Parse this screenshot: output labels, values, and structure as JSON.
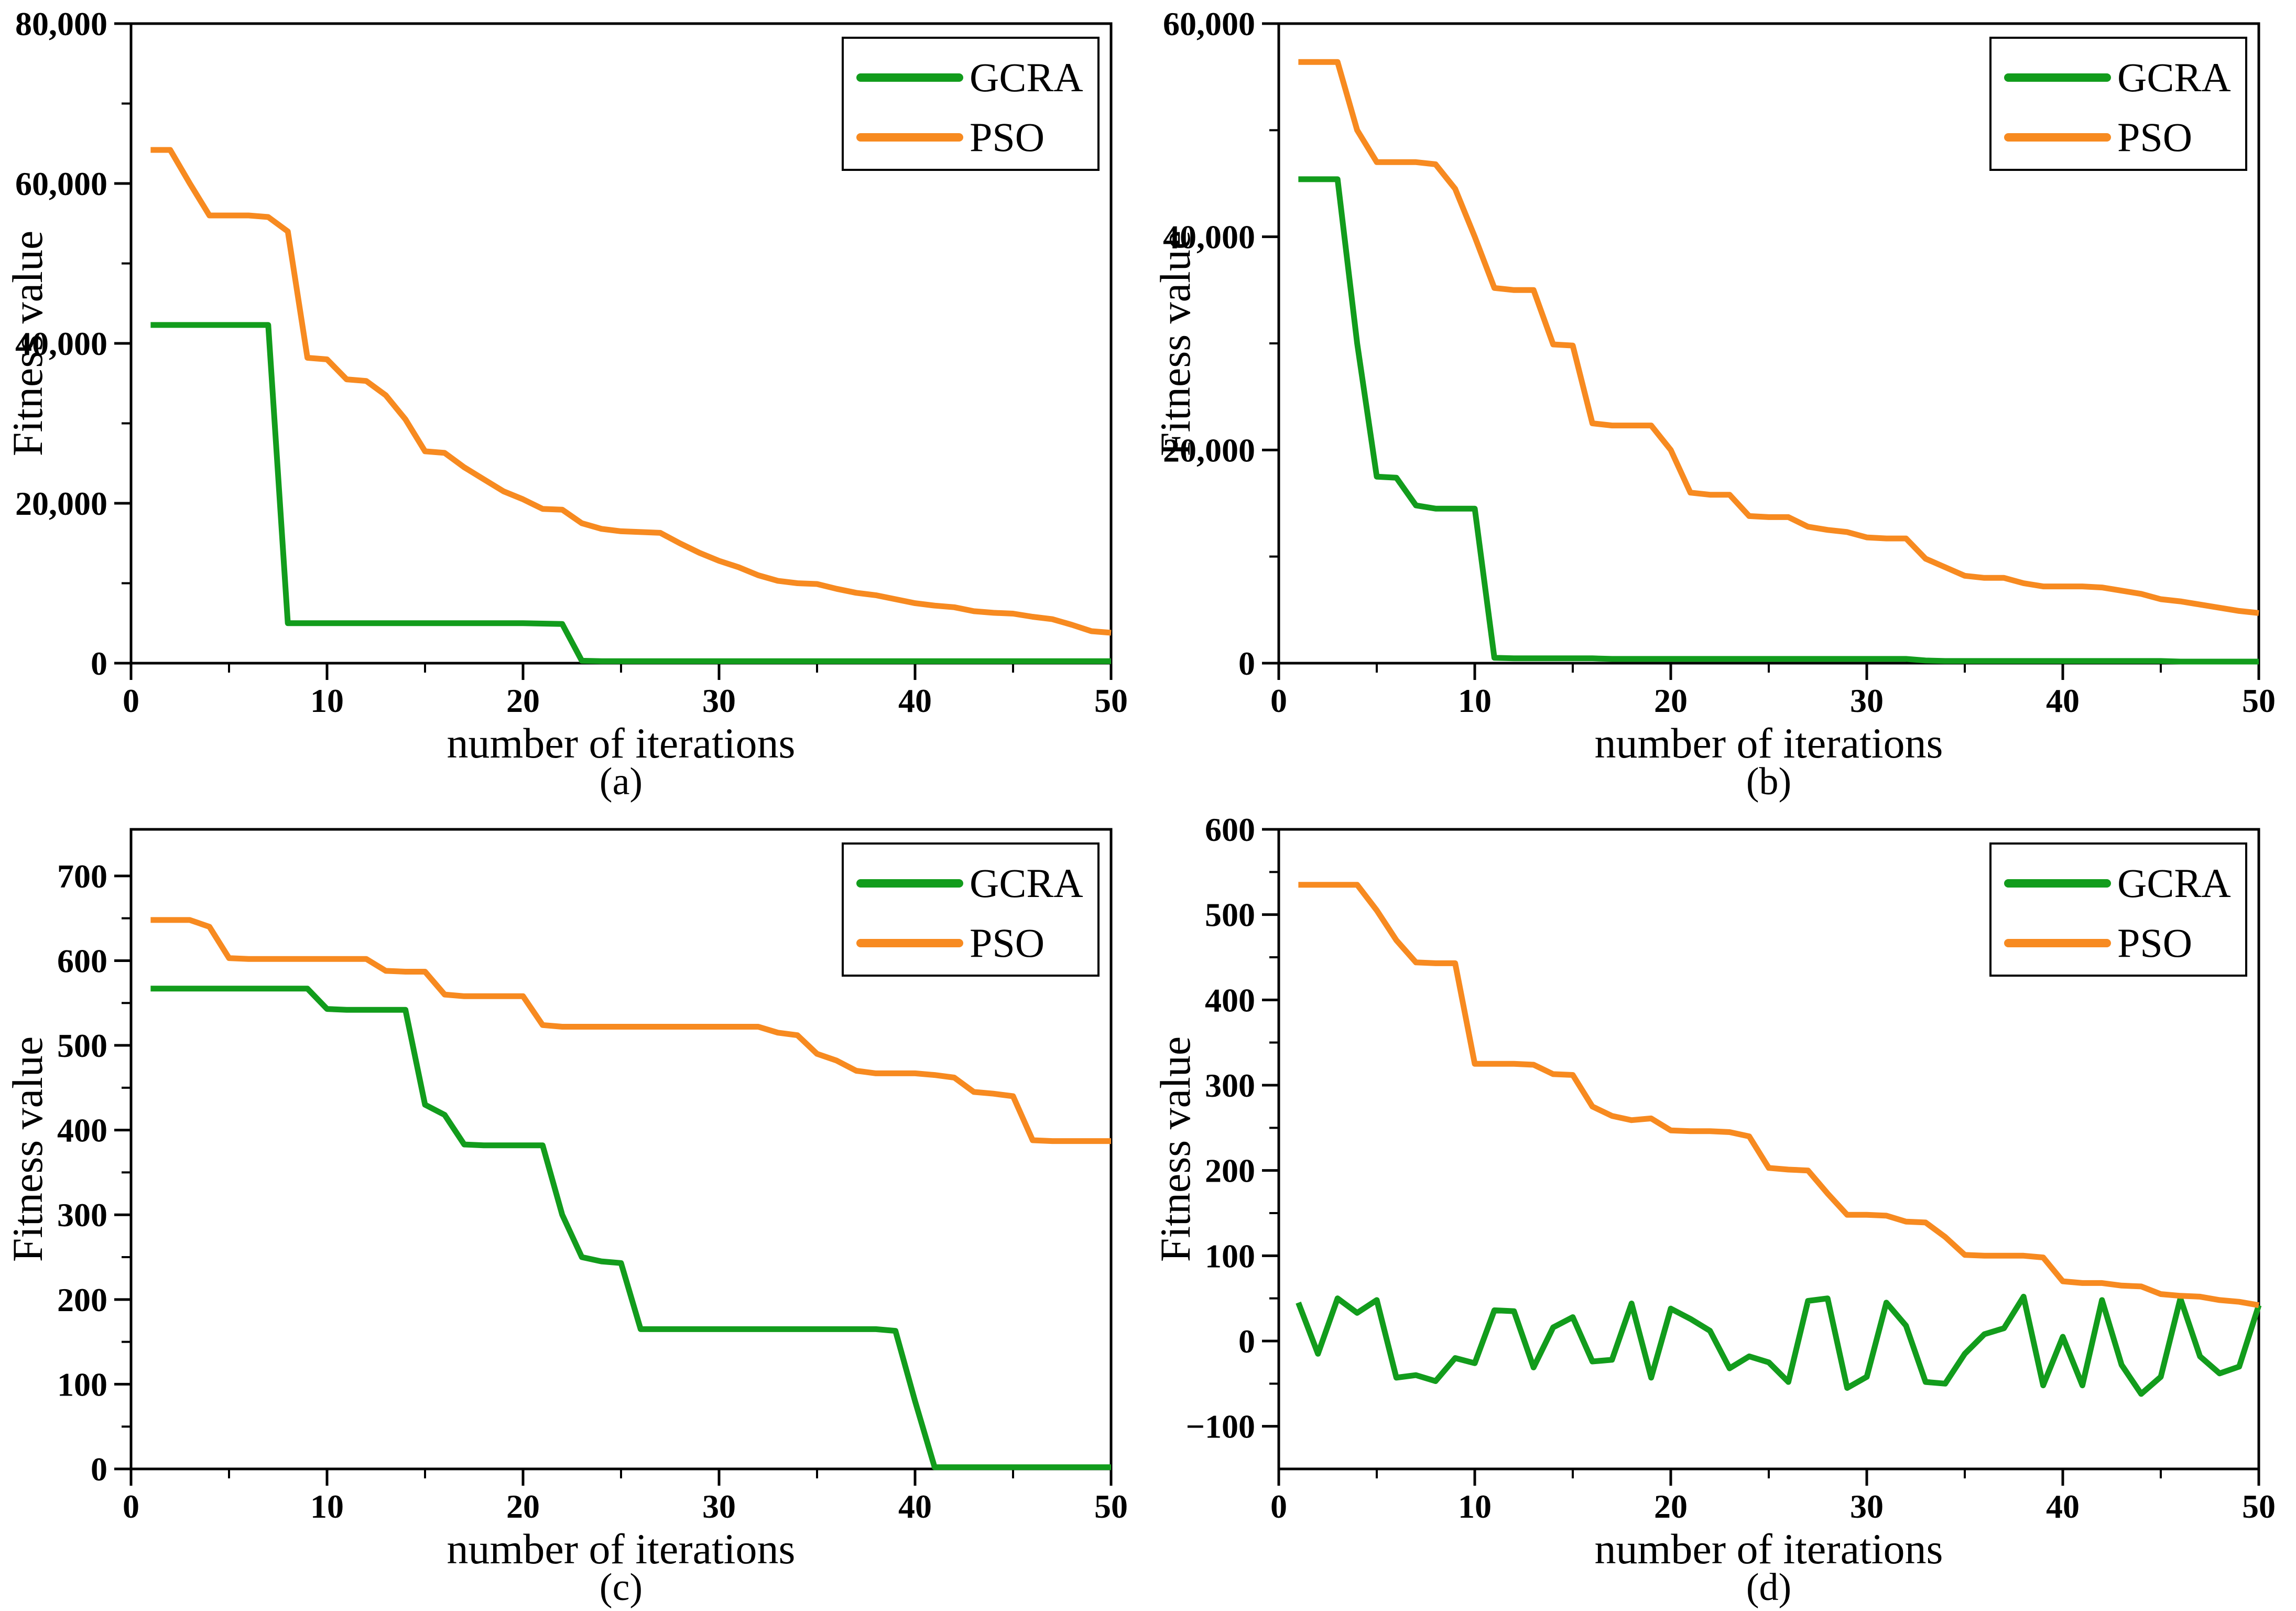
{
  "page": {
    "background": "#ffffff"
  },
  "colors": {
    "gcra": "#129C1C",
    "pso": "#F78A20",
    "axis": "#000000"
  },
  "legend": {
    "items": [
      {
        "label": "GCRA"
      },
      {
        "label": "PSO"
      }
    ],
    "position": "top-right"
  },
  "chart_data": [
    {
      "id": "a",
      "type": "line",
      "caption": "(a)",
      "xlabel": "number of iterations",
      "ylabel": "Fitness value",
      "grid": false,
      "legend_position": "top-right",
      "xlim": [
        0,
        50
      ],
      "ylim": [
        0,
        80000
      ],
      "x_start": 1,
      "x_step": 1,
      "xticks": {
        "major": [
          0,
          10,
          20,
          30,
          40,
          50
        ],
        "minor": [
          5,
          15,
          25,
          35,
          45
        ]
      },
      "yticks": {
        "major": [
          {
            "v": 0,
            "label": "0"
          },
          {
            "v": 20000,
            "label": "20,000"
          },
          {
            "v": 40000,
            "label": "40,000"
          },
          {
            "v": 60000,
            "label": "60,000"
          },
          {
            "v": 80000,
            "label": "80,000"
          }
        ],
        "minor": [
          10000,
          30000,
          50000,
          70000
        ]
      },
      "series": [
        {
          "name": "GCRA",
          "color_key": "gcra",
          "values": [
            42300,
            42300,
            42300,
            42300,
            42300,
            42300,
            42300,
            5000,
            5000,
            5000,
            5000,
            5000,
            5000,
            5000,
            5000,
            5000,
            5000,
            5000,
            5000,
            5000,
            4950,
            4900,
            300,
            250,
            250,
            250,
            250,
            250,
            250,
            250,
            250,
            250,
            250,
            250,
            250,
            250,
            250,
            250,
            250,
            250,
            250,
            250,
            250,
            250,
            250,
            250,
            250,
            250,
            250,
            250
          ]
        },
        {
          "name": "PSO",
          "color_key": "pso",
          "values": [
            64200,
            64200,
            60000,
            56000,
            56000,
            56000,
            55800,
            54000,
            38200,
            38000,
            35500,
            35300,
            33500,
            30500,
            26500,
            26300,
            24500,
            23000,
            21500,
            20500,
            19300,
            19200,
            17500,
            16800,
            16500,
            16400,
            16300,
            15000,
            13800,
            12800,
            12000,
            11000,
            10300,
            10000,
            9900,
            9300,
            8800,
            8500,
            8000,
            7500,
            7200,
            7000,
            6500,
            6300,
            6200,
            5800,
            5500,
            4800,
            4000,
            3800
          ]
        }
      ]
    },
    {
      "id": "b",
      "type": "line",
      "caption": "(b)",
      "xlabel": "number of iterations",
      "ylabel": "Fitness value",
      "grid": false,
      "legend_position": "top-right",
      "xlim": [
        0,
        50
      ],
      "ylim": [
        0,
        60000
      ],
      "x_start": 1,
      "x_step": 1,
      "xticks": {
        "major": [
          0,
          10,
          20,
          30,
          40,
          50
        ],
        "minor": [
          5,
          15,
          25,
          35,
          45
        ]
      },
      "yticks": {
        "major": [
          {
            "v": 0,
            "label": "0"
          },
          {
            "v": 20000,
            "label": "20,000"
          },
          {
            "v": 40000,
            "label": "40,000"
          },
          {
            "v": 60000,
            "label": "60,000"
          }
        ],
        "minor": [
          10000,
          30000,
          50000
        ]
      },
      "series": [
        {
          "name": "GCRA",
          "color_key": "gcra",
          "values": [
            45400,
            45400,
            45400,
            30000,
            17500,
            17400,
            14800,
            14500,
            14500,
            14500,
            500,
            450,
            450,
            450,
            450,
            450,
            400,
            400,
            400,
            400,
            400,
            400,
            400,
            400,
            400,
            400,
            400,
            400,
            400,
            400,
            400,
            400,
            250,
            200,
            200,
            200,
            200,
            200,
            200,
            200,
            200,
            200,
            200,
            200,
            200,
            150,
            150,
            150,
            150,
            150
          ]
        },
        {
          "name": "PSO",
          "color_key": "pso",
          "values": [
            56400,
            56400,
            56400,
            50000,
            47000,
            47000,
            47000,
            46800,
            44500,
            40000,
            35200,
            35000,
            35000,
            29900,
            29800,
            22500,
            22300,
            22300,
            22300,
            20000,
            16000,
            15800,
            15800,
            13800,
            13700,
            13700,
            12800,
            12500,
            12300,
            11800,
            11700,
            11700,
            9800,
            9000,
            8200,
            8000,
            8000,
            7500,
            7200,
            7200,
            7200,
            7100,
            6800,
            6500,
            6000,
            5800,
            5500,
            5200,
            4900,
            4700
          ]
        }
      ]
    },
    {
      "id": "c",
      "type": "line",
      "caption": "(c)",
      "xlabel": "number of iterations",
      "ylabel": "Fitness value",
      "grid": false,
      "legend_position": "top-right",
      "xlim": [
        0,
        50
      ],
      "ylim": [
        0,
        755
      ],
      "x_start": 1,
      "x_step": 1,
      "xticks": {
        "major": [
          0,
          10,
          20,
          30,
          40,
          50
        ],
        "minor": [
          5,
          15,
          25,
          35,
          45
        ]
      },
      "yticks": {
        "major": [
          {
            "v": 0,
            "label": "0"
          },
          {
            "v": 100,
            "label": "100"
          },
          {
            "v": 200,
            "label": "200"
          },
          {
            "v": 300,
            "label": "300"
          },
          {
            "v": 400,
            "label": "400"
          },
          {
            "v": 500,
            "label": "500"
          },
          {
            "v": 600,
            "label": "600"
          },
          {
            "v": 700,
            "label": "700"
          }
        ],
        "minor": [
          50,
          150,
          250,
          350,
          450,
          550,
          650
        ]
      },
      "series": [
        {
          "name": "GCRA",
          "color_key": "gcra",
          "values": [
            567,
            567,
            567,
            567,
            567,
            567,
            567,
            567,
            567,
            543,
            542,
            542,
            542,
            542,
            430,
            418,
            383,
            382,
            382,
            382,
            382,
            300,
            250,
            245,
            243,
            165,
            165,
            165,
            165,
            165,
            165,
            165,
            165,
            165,
            165,
            165,
            165,
            165,
            163,
            80,
            2,
            2,
            2,
            2,
            2,
            2,
            2,
            2,
            2,
            2
          ]
        },
        {
          "name": "PSO",
          "color_key": "pso",
          "values": [
            648,
            648,
            648,
            640,
            603,
            602,
            602,
            602,
            602,
            602,
            602,
            602,
            588,
            587,
            587,
            560,
            558,
            558,
            558,
            558,
            524,
            522,
            522,
            522,
            522,
            522,
            522,
            522,
            522,
            522,
            522,
            522,
            515,
            512,
            490,
            482,
            470,
            467,
            467,
            467,
            465,
            462,
            445,
            443,
            440,
            388,
            387,
            387,
            387,
            387
          ]
        }
      ]
    },
    {
      "id": "d",
      "type": "line",
      "caption": "(d)",
      "xlabel": "number of iterations",
      "ylabel": "Fitness value",
      "grid": false,
      "legend_position": "top-right",
      "xlim": [
        0,
        50
      ],
      "ylim": [
        -150,
        600
      ],
      "x_start": 1,
      "x_step": 1,
      "xticks": {
        "major": [
          0,
          10,
          20,
          30,
          40,
          50
        ],
        "minor": [
          5,
          15,
          25,
          35,
          45
        ]
      },
      "yticks": {
        "major": [
          {
            "v": -100,
            "label": "−100"
          },
          {
            "v": 0,
            "label": "0"
          },
          {
            "v": 100,
            "label": "100"
          },
          {
            "v": 200,
            "label": "200"
          },
          {
            "v": 300,
            "label": "300"
          },
          {
            "v": 400,
            "label": "400"
          },
          {
            "v": 500,
            "label": "500"
          },
          {
            "v": 600,
            "label": "600"
          }
        ],
        "minor": [
          -50,
          50,
          150,
          250,
          350,
          450,
          550
        ]
      },
      "series": [
        {
          "name": "GCRA",
          "color_key": "gcra",
          "values": [
            45,
            -15,
            50,
            33,
            48,
            -43,
            -40,
            -47,
            -20,
            -26,
            36,
            35,
            -31,
            16,
            28,
            -24,
            -22,
            44,
            -43,
            38,
            26,
            12,
            -32,
            -18,
            -25,
            -48,
            47,
            50,
            -55,
            -42,
            45,
            18,
            -48,
            -50,
            -15,
            8,
            15,
            52,
            -52,
            5,
            -52,
            48,
            -28,
            -62,
            -42,
            50,
            -18,
            -38,
            -30,
            42
          ]
        },
        {
          "name": "PSO",
          "color_key": "pso",
          "values": [
            535,
            535,
            535,
            535,
            505,
            470,
            444,
            443,
            443,
            325,
            325,
            325,
            324,
            313,
            312,
            275,
            264,
            259,
            261,
            247,
            246,
            246,
            245,
            240,
            203,
            201,
            200,
            173,
            148,
            148,
            147,
            140,
            139,
            122,
            101,
            100,
            100,
            100,
            98,
            70,
            68,
            68,
            65,
            64,
            55,
            53,
            52,
            48,
            46,
            42
          ]
        }
      ]
    }
  ]
}
